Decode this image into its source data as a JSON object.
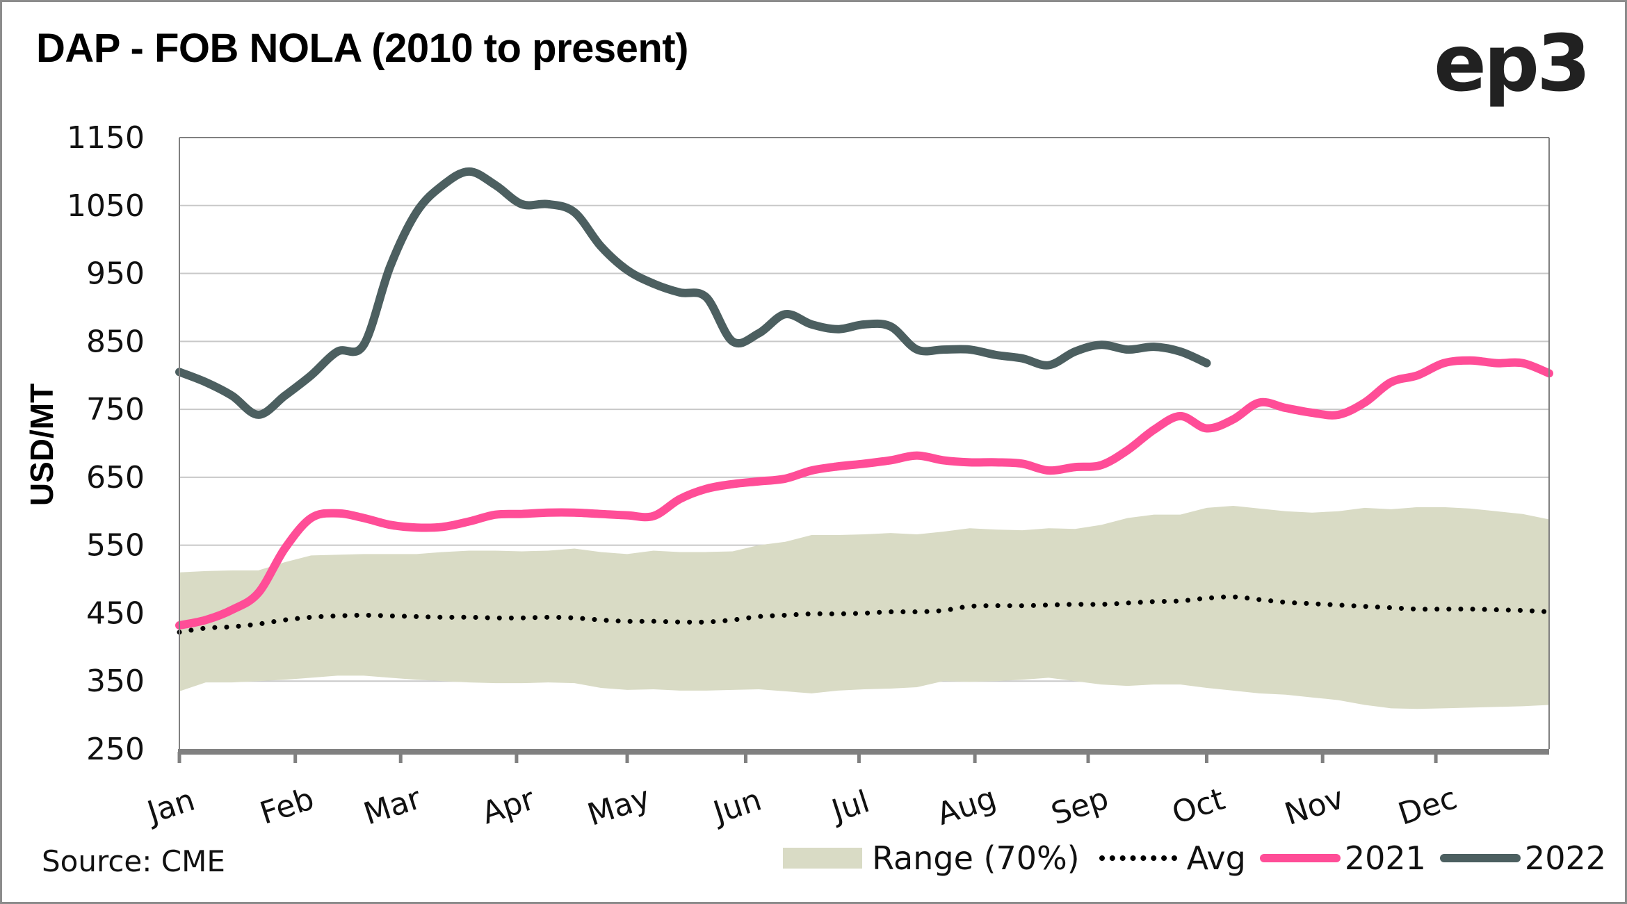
{
  "header": {
    "title": "DAP - FOB NOLA (2010 to present)",
    "logo": "ep3"
  },
  "footer": {
    "source": "Source: CME"
  },
  "legend": {
    "range": "Range (70%)",
    "avg": "Avg",
    "y2021": "2021",
    "y2022": "2022"
  },
  "colors": {
    "range": "#d9dbc5",
    "avg": "#000000",
    "y2021": "#ff4d97",
    "y2022": "#4c5f60",
    "grid": "#c8c8c8",
    "axis": "#808080"
  },
  "chart_data": {
    "type": "line",
    "title": "DAP - FOB NOLA (2010 to present)",
    "xlabel": "",
    "ylabel": "USD/MT",
    "ylim": [
      250,
      1150
    ],
    "yticks": [
      1150,
      1050,
      950,
      850,
      750,
      650,
      550,
      450,
      350,
      250
    ],
    "x_unit": "week of year",
    "xlim": [
      0,
      52
    ],
    "categories": [
      "Jan",
      "Feb",
      "Mar",
      "Apr",
      "May",
      "Jun",
      "Jul",
      "Aug",
      "Sep",
      "Oct",
      "Nov",
      "Dec"
    ],
    "category_weeks": [
      0,
      4.4,
      8.4,
      12.8,
      17.0,
      21.5,
      25.8,
      30.2,
      34.5,
      39.0,
      43.4,
      47.7
    ],
    "grid": true,
    "legend_position": "bottom-right",
    "series": [
      {
        "name": "Range (70%)",
        "kind": "band",
        "upper": [
          510,
          512,
          513,
          513,
          525,
          535,
          536,
          537,
          537,
          537,
          540,
          542,
          542,
          541,
          542,
          545,
          540,
          537,
          542,
          540,
          540,
          541,
          550,
          555,
          565,
          565,
          566,
          568,
          566,
          570,
          575,
          573,
          572,
          575,
          574,
          580,
          590,
          595,
          595,
          605,
          608,
          604,
          600,
          598,
          600,
          605,
          603,
          606,
          606,
          604,
          600,
          596,
          588
        ],
        "lower": [
          335,
          348,
          348,
          350,
          352,
          355,
          358,
          358,
          355,
          352,
          350,
          348,
          347,
          347,
          348,
          347,
          340,
          337,
          338,
          336,
          336,
          337,
          338,
          335,
          332,
          336,
          338,
          339,
          341,
          350,
          349,
          350,
          352,
          355,
          350,
          345,
          343,
          345,
          345,
          340,
          336,
          332,
          330,
          326,
          322,
          315,
          310,
          309,
          310,
          311,
          312,
          313,
          315
        ]
      },
      {
        "name": "Avg",
        "kind": "dotted",
        "values": [
          422,
          428,
          430,
          434,
          440,
          444,
          446,
          447,
          446,
          445,
          444,
          444,
          443,
          443,
          444,
          443,
          440,
          438,
          438,
          437,
          437,
          440,
          445,
          447,
          449,
          449,
          450,
          452,
          452,
          454,
          460,
          461,
          461,
          462,
          463,
          463,
          465,
          467,
          468,
          472,
          474,
          470,
          466,
          464,
          462,
          460,
          458,
          456,
          456,
          456,
          455,
          454,
          452
        ]
      },
      {
        "name": "2021",
        "kind": "line",
        "values": [
          432,
          440,
          455,
          480,
          545,
          590,
          597,
          590,
          580,
          576,
          577,
          585,
          595,
          596,
          598,
          598,
          596,
          594,
          593,
          618,
          633,
          640,
          644,
          648,
          660,
          666,
          670,
          675,
          682,
          675,
          672,
          672,
          670,
          660,
          665,
          668,
          690,
          720,
          740,
          722,
          735,
          760,
          752,
          745,
          742,
          760,
          790,
          800,
          818,
          822,
          818,
          818,
          803
        ],
        "end_week": 52
      },
      {
        "name": "2022",
        "kind": "line",
        "values": [
          805,
          790,
          770,
          742,
          770,
          800,
          835,
          845,
          960,
          1040,
          1080,
          1100,
          1080,
          1052,
          1052,
          1040,
          990,
          955,
          935,
          922,
          915,
          850,
          862,
          890,
          875,
          868,
          875,
          872,
          838,
          838,
          838,
          830,
          825,
          815,
          835,
          845,
          838,
          842,
          835,
          818
        ],
        "end_week": 39
      }
    ]
  }
}
